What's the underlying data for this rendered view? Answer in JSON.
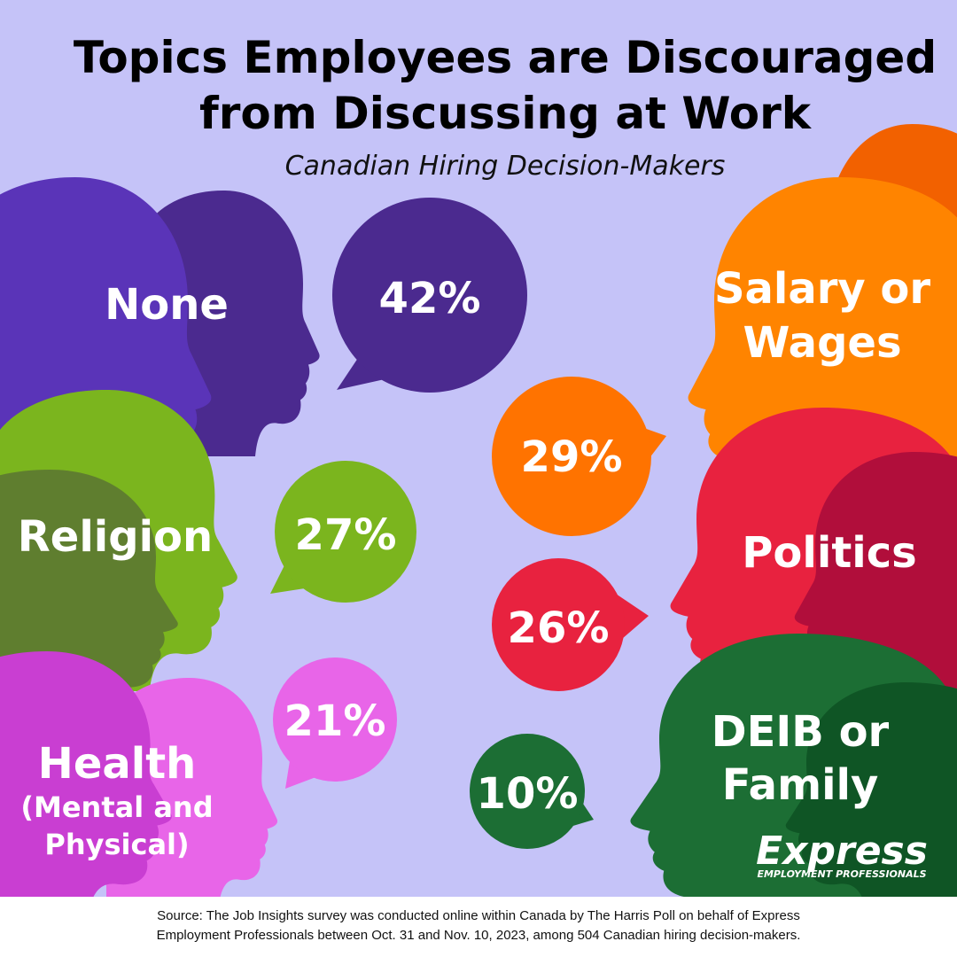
{
  "header": {
    "title_lines": [
      "Topics Employees are Discouraged",
      "from Discussing at Work"
    ],
    "subtitle": "Canadian Hiring Decision-Makers"
  },
  "topics": [
    {
      "label_lines": [
        "None"
      ],
      "value": "42%"
    },
    {
      "label_lines": [
        "Religion"
      ],
      "value": "27%"
    },
    {
      "label_lines": [
        "Health",
        "(Mental and",
        "Physical)"
      ],
      "value": "21%"
    },
    {
      "label_lines": [
        "Salary or",
        "Wages"
      ],
      "value": "29%"
    },
    {
      "label_lines": [
        "Politics"
      ],
      "value": "26%"
    },
    {
      "label_lines": [
        "DEIB or",
        "Family"
      ],
      "value": "10%"
    }
  ],
  "logo": {
    "name": "Express",
    "tagline": "EMPLOYMENT PROFESSIONALS"
  },
  "footer": {
    "lines": [
      "Source: The Job Insights survey was conducted online within Canada by The Harris Poll on behalf of Express",
      "Employment Professionals between Oct. 31 and Nov. 10, 2023, among 504 Canadian hiring decision-makers."
    ]
  }
}
